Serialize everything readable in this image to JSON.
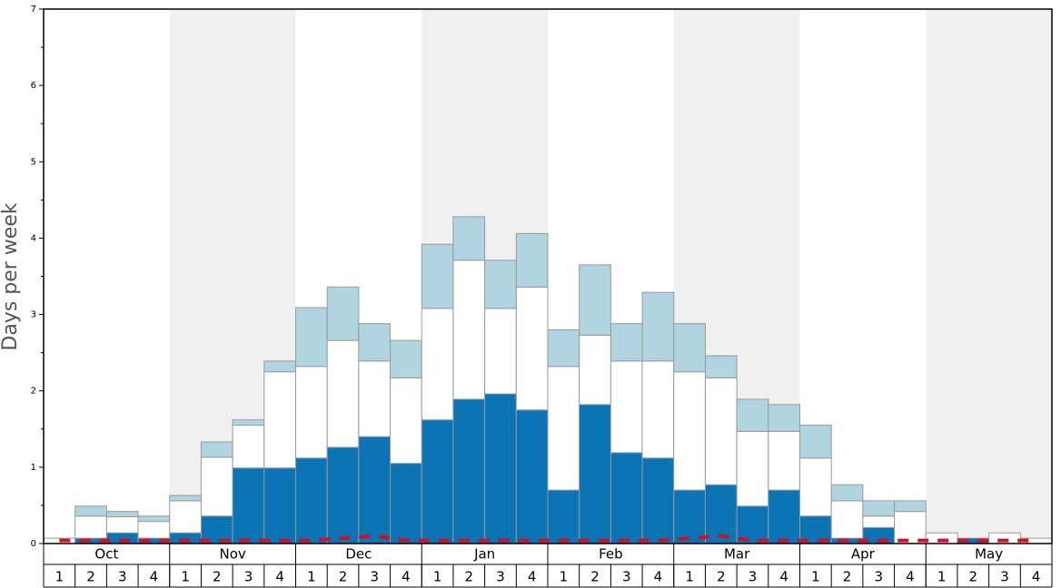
{
  "chart_data": {
    "type": "bar",
    "y_label": "Days per week",
    "months": [
      "Oct",
      "Nov",
      "Dec",
      "Jan",
      "Feb",
      "Mar",
      "Apr",
      "May"
    ],
    "categories": [
      "1",
      "2",
      "3",
      "4",
      "1",
      "2",
      "3",
      "4",
      "1",
      "2",
      "3",
      "4",
      "1",
      "2",
      "3",
      "4",
      "1",
      "2",
      "3",
      "4",
      "1",
      "2",
      "3",
      "4",
      "1",
      "2",
      "3",
      "4",
      "1",
      "2",
      "3",
      "4"
    ],
    "stacked": true,
    "series": [
      {
        "color": "#0a74b4",
        "values": [
          0,
          0.07,
          0.14,
          0.07,
          0.14,
          0.36,
          0.99,
          0.99,
          1.12,
          1.26,
          1.4,
          1.05,
          1.62,
          1.89,
          1.96,
          1.75,
          0.7,
          1.82,
          1.19,
          1.12,
          0.7,
          0.77,
          0.49,
          0.7,
          0.36,
          0.07,
          0.21,
          0,
          0,
          0.07,
          0,
          0
        ]
      },
      {
        "color": "#ffffff",
        "values": [
          0.07,
          0.29,
          0.21,
          0.22,
          0.42,
          0.77,
          0.56,
          1.26,
          1.2,
          1.4,
          0.99,
          1.12,
          1.46,
          1.82,
          1.12,
          1.61,
          1.62,
          0.91,
          1.2,
          1.27,
          1.55,
          1.4,
          0.98,
          0.77,
          0.76,
          0.49,
          0.15,
          0.42,
          0.14,
          0,
          0.14,
          0.07
        ]
      },
      {
        "color": "#b0d4e0",
        "values": [
          0,
          0.13,
          0.07,
          0.07,
          0.07,
          0.2,
          0.07,
          0.14,
          0.77,
          0.7,
          0.49,
          0.49,
          0.84,
          0.57,
          0.63,
          0.7,
          0.48,
          0.92,
          0.49,
          0.9,
          0.63,
          0.29,
          0.42,
          0.35,
          0.43,
          0.21,
          0.2,
          0.14,
          0,
          0,
          0,
          0
        ]
      }
    ],
    "line": {
      "color": "#d0102a",
      "values": [
        0.04,
        0.04,
        0.04,
        0.04,
        0.04,
        0.04,
        0.04,
        0.04,
        0.04,
        0.07,
        0.1,
        0.04,
        0.04,
        0.04,
        0.04,
        0.04,
        0.04,
        0.04,
        0.04,
        0.04,
        0.07,
        0.1,
        0.04,
        0.04,
        0.04,
        0.04,
        0.04,
        0.04,
        0.04,
        0.04,
        0.04,
        0.04
      ]
    },
    "ylim": [
      0,
      7
    ],
    "yticks": [
      0,
      1,
      2,
      3,
      4,
      5,
      6,
      7
    ]
  }
}
